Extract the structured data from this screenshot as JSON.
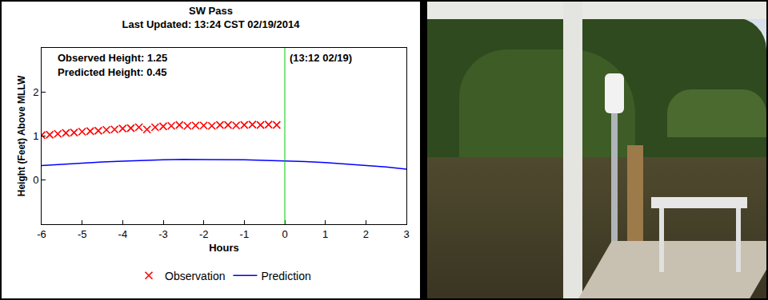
{
  "chart_data": {
    "type": "scatter",
    "title": "SW Pass",
    "subtitle": "Last Updated: 13:24 CST 02/19/2014",
    "x_label": "Hours",
    "y_label": "Height (Feet) Above MLLW",
    "xlim": [
      -6,
      3
    ],
    "xticks": [
      -6,
      -5,
      -4,
      -3,
      -2,
      -1,
      0,
      1,
      2,
      3
    ],
    "ylim": [
      -1,
      3
    ],
    "yticks": [
      0,
      1,
      2
    ],
    "grid": false,
    "legend": "bottom",
    "annotations": [
      "Observed Height: 1.25",
      "Predicted Height: 0.45",
      "(13:12 02/19)"
    ],
    "vline": {
      "x": 0,
      "color": "#00cc00"
    },
    "series": [
      {
        "name": "Observation",
        "type": "scatter",
        "marker": "x",
        "color": "#ff0000",
        "x": [
          -6,
          -5.8,
          -5.6,
          -5.4,
          -5.2,
          -5,
          -4.8,
          -4.6,
          -4.4,
          -4.2,
          -4,
          -3.8,
          -3.6,
          -3.4,
          -3.2,
          -3,
          -2.8,
          -2.6,
          -2.4,
          -2.2,
          -2,
          -1.8,
          -1.6,
          -1.4,
          -1.2,
          -1,
          -0.8,
          -0.6,
          -0.4,
          -0.2
        ],
        "values": [
          1.02,
          1.03,
          1.05,
          1.07,
          1.08,
          1.1,
          1.11,
          1.12,
          1.14,
          1.15,
          1.17,
          1.18,
          1.2,
          1.15,
          1.2,
          1.22,
          1.23,
          1.25,
          1.23,
          1.24,
          1.24,
          1.23,
          1.25,
          1.25,
          1.24,
          1.25,
          1.26,
          1.25,
          1.26,
          1.25
        ]
      },
      {
        "name": "Prediction",
        "type": "line",
        "line_style": "solid",
        "color": "#0000ff",
        "x": [
          -6,
          -5.5,
          -5,
          -4.5,
          -4,
          -3.5,
          -3,
          -2.5,
          -2,
          -1.5,
          -1,
          -0.5,
          0,
          0.5,
          1,
          1.5,
          2,
          2.5,
          3
        ],
        "values": [
          0.33,
          0.36,
          0.39,
          0.41,
          0.43,
          0.45,
          0.46,
          0.47,
          0.47,
          0.47,
          0.46,
          0.45,
          0.44,
          0.42,
          0.4,
          0.37,
          0.34,
          0.3,
          0.25
        ]
      }
    ]
  }
}
